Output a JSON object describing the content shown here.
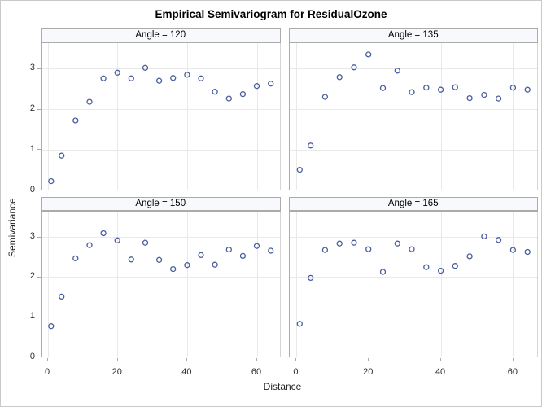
{
  "figure": {
    "title": "Empirical Semivariogram for ResidualOzone",
    "xlabel": "Distance",
    "ylabel": "Semivariance"
  },
  "chart_data": {
    "type": "scatter",
    "layout": "2x2-lattice-panels",
    "title": "Empirical Semivariogram for ResidualOzone",
    "xlabel": "Distance",
    "ylabel": "Semivariance",
    "x": [
      1,
      4,
      8,
      12,
      16,
      20,
      24,
      28,
      32,
      36,
      40,
      44,
      48,
      52,
      56,
      60,
      64
    ],
    "panels": [
      {
        "label": "Angle = 120",
        "values": [
          0.22,
          0.85,
          1.72,
          2.18,
          2.76,
          2.9,
          2.76,
          3.02,
          2.7,
          2.77,
          2.85,
          2.76,
          2.43,
          2.26,
          2.37,
          2.57,
          2.63
        ]
      },
      {
        "label": "Angle = 135",
        "values": [
          0.5,
          1.1,
          2.3,
          2.79,
          3.03,
          3.35,
          2.52,
          2.95,
          2.42,
          2.53,
          2.48,
          2.54,
          2.27,
          2.35,
          2.26,
          2.53,
          2.48
        ]
      },
      {
        "label": "Angle = 150",
        "values": [
          0.76,
          1.5,
          2.46,
          2.79,
          3.09,
          2.91,
          2.43,
          2.85,
          2.42,
          2.19,
          2.29,
          2.54,
          2.3,
          2.68,
          2.52,
          2.77,
          2.65
        ]
      },
      {
        "label": "Angle = 165",
        "values": [
          0.82,
          1.97,
          2.67,
          2.83,
          2.85,
          2.69,
          2.12,
          2.83,
          2.69,
          2.24,
          2.15,
          2.27,
          2.51,
          3.01,
          2.92,
          2.67,
          2.62
        ]
      }
    ],
    "xticks": [
      0,
      20,
      40,
      60
    ],
    "yticks": [
      0,
      1,
      2,
      3
    ],
    "xlim": [
      -2,
      67
    ],
    "ylim": [
      -0.02,
      3.65
    ],
    "grid": true,
    "legend": "none",
    "marker": {
      "shape": "circle-open",
      "color": "#4a5e9e"
    },
    "colors": {
      "grid": "#e9e9e9",
      "frame": "#ababab",
      "header_bg": "#f8f9fc",
      "plot_bg": "#ffffff"
    }
  }
}
